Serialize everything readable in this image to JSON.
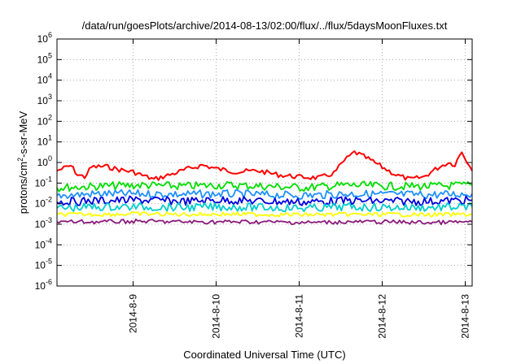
{
  "chart_data": {
    "type": "line",
    "title": "/data/run/goesPlots/archive/2014-08-13/02:00/flux/../flux/5daysMoonFluxes.txt",
    "xlabel": "Coordinated Universal Time (UTC)",
    "ylabel": "protons/cm2-s-sr-MeV",
    "ylabel_parts": {
      "base": "protons/cm",
      "sup": "2",
      "rest": "-s-sr-MeV"
    },
    "x_range": [
      "2014-08-08T02:00",
      "2014-08-13T02:00"
    ],
    "x_ticks": [
      "2014-8-9",
      "2014-8-10",
      "2014-8-11",
      "2014-8-12",
      "2014-8-13"
    ],
    "y_scale": "log",
    "ylim": [
      1e-06,
      1000000.0
    ],
    "y_ticks": [
      {
        "base": "10",
        "exp": "-6"
      },
      {
        "base": "10",
        "exp": "-5"
      },
      {
        "base": "10",
        "exp": "-4"
      },
      {
        "base": "10",
        "exp": "-3"
      },
      {
        "base": "10",
        "exp": "-2"
      },
      {
        "base": "10",
        "exp": "-1"
      },
      {
        "base": "10",
        "exp": "0"
      },
      {
        "base": "10",
        "exp": "1"
      },
      {
        "base": "10",
        "exp": "2"
      },
      {
        "base": "10",
        "exp": "3"
      },
      {
        "base": "10",
        "exp": "4"
      },
      {
        "base": "10",
        "exp": "5"
      },
      {
        "base": "10",
        "exp": "6"
      }
    ],
    "grid": true,
    "series": [
      {
        "color": "#ff0000",
        "x": [
          "2014-08-08T02:00",
          "2014-08-08T06:00",
          "2014-08-08T08:00",
          "2014-08-08T10:00",
          "2014-08-08T12:00",
          "2014-08-08T16:00",
          "2014-08-08T20:00",
          "2014-08-09T00:00",
          "2014-08-09T06:00",
          "2014-08-09T12:00",
          "2014-08-09T16:00",
          "2014-08-09T20:00",
          "2014-08-10T00:00",
          "2014-08-10T06:00",
          "2014-08-10T12:00",
          "2014-08-10T18:00",
          "2014-08-11T00:00",
          "2014-08-11T06:00",
          "2014-08-11T10:00",
          "2014-08-11T13:00",
          "2014-08-11T16:00",
          "2014-08-11T20:00",
          "2014-08-12T00:00",
          "2014-08-12T04:00",
          "2014-08-12T08:00",
          "2014-08-12T12:00",
          "2014-08-12T16:00",
          "2014-08-12T19:00",
          "2014-08-12T21:00",
          "2014-08-12T23:00",
          "2014-08-13T02:00"
        ],
        "values": [
          0.4,
          0.7,
          0.25,
          0.2,
          0.6,
          0.65,
          0.45,
          0.35,
          0.15,
          0.3,
          0.5,
          0.75,
          0.5,
          0.35,
          0.4,
          0.25,
          0.2,
          0.18,
          0.3,
          1.2,
          3.2,
          1.5,
          0.6,
          0.25,
          0.15,
          0.2,
          0.55,
          1.0,
          0.8,
          3.5,
          0.4
        ]
      },
      {
        "color": "#00dd00",
        "x": [
          "2014-08-08T02:00",
          "2014-08-08T14:00",
          "2014-08-09T02:00",
          "2014-08-09T14:00",
          "2014-08-10T02:00",
          "2014-08-10T14:00",
          "2014-08-11T02:00",
          "2014-08-11T14:00",
          "2014-08-12T02:00",
          "2014-08-12T14:00",
          "2014-08-13T02:00"
        ],
        "values": [
          0.06,
          0.07,
          0.08,
          0.07,
          0.08,
          0.07,
          0.06,
          0.08,
          0.07,
          0.07,
          0.08
        ]
      },
      {
        "color": "#1e90ff",
        "x": [
          "2014-08-08T02:00",
          "2014-08-08T14:00",
          "2014-08-09T02:00",
          "2014-08-09T14:00",
          "2014-08-10T02:00",
          "2014-08-10T14:00",
          "2014-08-11T02:00",
          "2014-08-11T14:00",
          "2014-08-12T02:00",
          "2014-08-12T14:00",
          "2014-08-13T02:00"
        ],
        "values": [
          0.025,
          0.03,
          0.03,
          0.028,
          0.03,
          0.027,
          0.025,
          0.03,
          0.028,
          0.027,
          0.03
        ]
      },
      {
        "color": "#0000dd",
        "x": [
          "2014-08-08T02:00",
          "2014-08-08T14:00",
          "2014-08-09T02:00",
          "2014-08-09T14:00",
          "2014-08-10T02:00",
          "2014-08-10T14:00",
          "2014-08-11T02:00",
          "2014-08-11T14:00",
          "2014-08-12T02:00",
          "2014-08-12T14:00",
          "2014-08-13T02:00"
        ],
        "values": [
          0.012,
          0.014,
          0.015,
          0.013,
          0.015,
          0.013,
          0.012,
          0.014,
          0.013,
          0.013,
          0.015
        ]
      },
      {
        "color": "#00cccc",
        "x": [
          "2014-08-08T02:00",
          "2014-08-08T14:00",
          "2014-08-09T02:00",
          "2014-08-09T14:00",
          "2014-08-10T02:00",
          "2014-08-10T14:00",
          "2014-08-11T02:00",
          "2014-08-11T14:00",
          "2014-08-12T02:00",
          "2014-08-12T14:00",
          "2014-08-13T02:00"
        ],
        "values": [
          0.006,
          0.007,
          0.007,
          0.0065,
          0.007,
          0.0065,
          0.006,
          0.007,
          0.0065,
          0.0065,
          0.007
        ]
      },
      {
        "color": "#ffff00",
        "x": [
          "2014-08-08T02:00",
          "2014-08-08T14:00",
          "2014-08-09T02:00",
          "2014-08-09T14:00",
          "2014-08-10T02:00",
          "2014-08-10T14:00",
          "2014-08-11T02:00",
          "2014-08-11T14:00",
          "2014-08-12T02:00",
          "2014-08-12T14:00",
          "2014-08-13T02:00"
        ],
        "values": [
          0.003,
          0.003,
          0.0032,
          0.003,
          0.0031,
          0.003,
          0.0029,
          0.003,
          0.003,
          0.0029,
          0.003
        ]
      },
      {
        "color": "#8b1a7a",
        "x": [
          "2014-08-08T02:00",
          "2014-08-08T14:00",
          "2014-08-09T02:00",
          "2014-08-09T14:00",
          "2014-08-10T02:00",
          "2014-08-10T14:00",
          "2014-08-11T02:00",
          "2014-08-11T14:00",
          "2014-08-12T02:00",
          "2014-08-12T14:00",
          "2014-08-13T02:00"
        ],
        "values": [
          0.0013,
          0.0013,
          0.0014,
          0.0013,
          0.0013,
          0.0013,
          0.0012,
          0.0013,
          0.0013,
          0.0012,
          0.0013
        ]
      }
    ]
  }
}
